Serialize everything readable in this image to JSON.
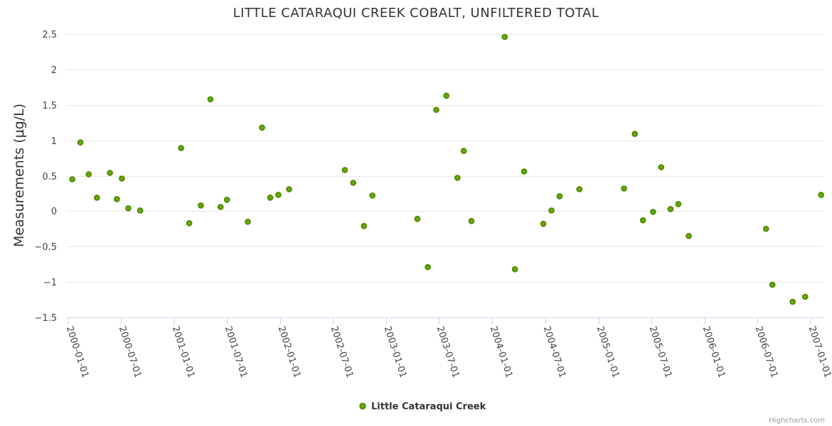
{
  "chart_data": {
    "type": "scatter",
    "title": "LITTLE CATARAQUI CREEK COBALT, UNFILTERED TOTAL",
    "xlabel": "",
    "ylabel": "Measurements (μg/L)",
    "ylim": [
      -1.5,
      2.5
    ],
    "yticks": [
      2.5,
      2,
      1.5,
      1,
      0.5,
      0,
      -0.5,
      -1,
      -1.5
    ],
    "ytick_labels": [
      "2.5",
      "2",
      "1.5",
      "1",
      "0.5",
      "0",
      "−0.5",
      "−1",
      "−1.5"
    ],
    "xlim": [
      "1999-12-25",
      "2007-02-15"
    ],
    "xticks": [
      "2000-01-01",
      "2000-07-01",
      "2001-01-01",
      "2001-07-01",
      "2002-01-01",
      "2002-07-01",
      "2003-01-01",
      "2003-07-01",
      "2004-01-01",
      "2004-07-01",
      "2005-01-01",
      "2005-07-01",
      "2006-01-01",
      "2006-07-01",
      "2007-01-01"
    ],
    "grid": true,
    "legend_position": "bottom-center",
    "series": [
      {
        "name": "Little Cataraqui Creek",
        "color": "#66aa00",
        "stroke": "#4a7d00",
        "points": [
          {
            "x": "2000-01-15",
            "y": 0.45
          },
          {
            "x": "2000-02-12",
            "y": 0.97
          },
          {
            "x": "2000-03-12",
            "y": 0.52
          },
          {
            "x": "2000-04-09",
            "y": 0.19
          },
          {
            "x": "2000-05-24",
            "y": 0.54
          },
          {
            "x": "2000-06-17",
            "y": 0.17
          },
          {
            "x": "2000-07-04",
            "y": 0.46
          },
          {
            "x": "2000-07-26",
            "y": 0.04
          },
          {
            "x": "2000-09-05",
            "y": 0.01
          },
          {
            "x": "2001-01-24",
            "y": 0.89
          },
          {
            "x": "2001-02-21",
            "y": -0.17
          },
          {
            "x": "2001-04-02",
            "y": 0.08
          },
          {
            "x": "2001-05-05",
            "y": 1.58
          },
          {
            "x": "2001-06-09",
            "y": 0.06
          },
          {
            "x": "2001-07-01",
            "y": 0.16
          },
          {
            "x": "2001-09-11",
            "y": -0.15
          },
          {
            "x": "2001-10-30",
            "y": 1.18
          },
          {
            "x": "2001-11-27",
            "y": 0.19
          },
          {
            "x": "2001-12-25",
            "y": 0.23
          },
          {
            "x": "2002-01-31",
            "y": 0.31
          },
          {
            "x": "2002-08-11",
            "y": 0.58
          },
          {
            "x": "2002-09-09",
            "y": 0.4
          },
          {
            "x": "2002-10-16",
            "y": -0.21
          },
          {
            "x": "2002-11-14",
            "y": 0.22
          },
          {
            "x": "2003-04-18",
            "y": -0.11
          },
          {
            "x": "2003-05-24",
            "y": -0.79
          },
          {
            "x": "2003-06-22",
            "y": 1.43
          },
          {
            "x": "2003-07-27",
            "y": 1.63
          },
          {
            "x": "2003-09-03",
            "y": 0.47
          },
          {
            "x": "2003-09-25",
            "y": 0.85
          },
          {
            "x": "2003-10-21",
            "y": -0.14
          },
          {
            "x": "2004-02-13",
            "y": 2.46
          },
          {
            "x": "2004-03-19",
            "y": -0.82
          },
          {
            "x": "2004-04-20",
            "y": 0.56
          },
          {
            "x": "2004-06-25",
            "y": -0.18
          },
          {
            "x": "2004-07-23",
            "y": 0.01
          },
          {
            "x": "2004-08-20",
            "y": 0.21
          },
          {
            "x": "2004-10-27",
            "y": 0.31
          },
          {
            "x": "2005-03-30",
            "y": 0.32
          },
          {
            "x": "2005-05-06",
            "y": 1.09
          },
          {
            "x": "2005-06-03",
            "y": -0.13
          },
          {
            "x": "2005-07-08",
            "y": -0.01
          },
          {
            "x": "2005-08-05",
            "y": 0.62
          },
          {
            "x": "2005-09-06",
            "y": 0.03
          },
          {
            "x": "2005-10-03",
            "y": 0.1
          },
          {
            "x": "2005-11-08",
            "y": -0.35
          },
          {
            "x": "2006-08-01",
            "y": -0.25
          },
          {
            "x": "2006-08-23",
            "y": -1.04
          },
          {
            "x": "2006-11-01",
            "y": -1.28
          },
          {
            "x": "2006-12-14",
            "y": -1.21
          },
          {
            "x": "2007-02-07",
            "y": 0.23
          }
        ]
      }
    ]
  },
  "legend": {
    "items": [
      {
        "label": "Little Cataraqui Creek"
      }
    ]
  },
  "credits": "Highcharts.com"
}
